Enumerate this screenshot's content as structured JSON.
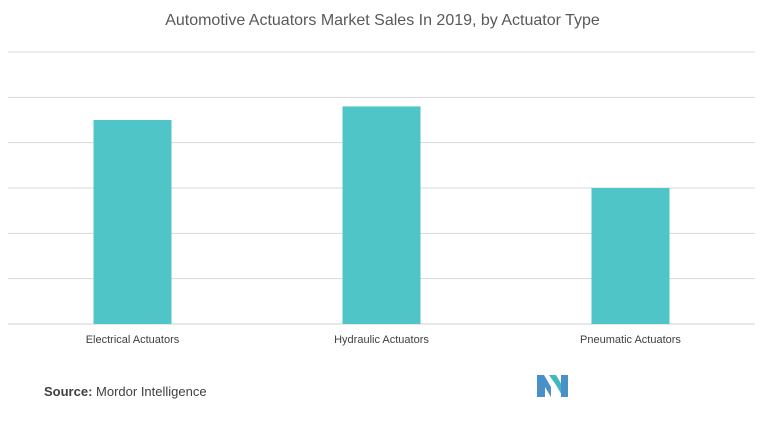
{
  "colors": {
    "bar": "#4fc5c7",
    "grid": "#d9d9d9",
    "axis_text": "#404040",
    "logo": "#4a90c8"
  },
  "chart_data": {
    "type": "bar",
    "title": "Automotive Actuators Market Sales In 2019, by Actuator Type",
    "categories": [
      "Electrical Actuators",
      "Hydraulic Actuators",
      "Pneumatic Actuators"
    ],
    "values": [
      45,
      48,
      30
    ],
    "xlabel": "",
    "ylabel": "",
    "ylim": [
      0,
      60
    ],
    "gridlines": [
      0,
      10,
      20,
      30,
      40,
      50,
      60
    ],
    "grid": true,
    "legend": "none"
  },
  "footer": {
    "source_label": "Source:",
    "source_text": "Mordor Intelligence"
  },
  "logo": {
    "name": "mordor-intelligence-logo"
  }
}
